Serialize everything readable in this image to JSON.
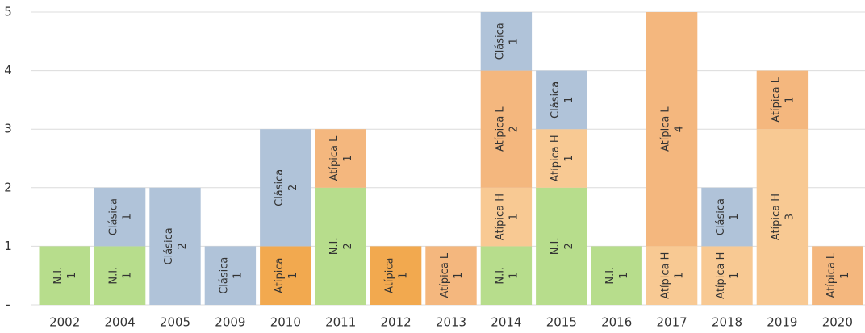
{
  "chart_data": {
    "type": "stacked_bar",
    "categories": [
      "2002",
      "2004",
      "2005",
      "2009",
      "2010",
      "2011",
      "2012",
      "2013",
      "2014",
      "2015",
      "2016",
      "2017",
      "2018",
      "2019",
      "2020"
    ],
    "series": [
      {
        "name": "N.I.",
        "color": "#b7dd8c",
        "values": [
          1,
          1,
          null,
          null,
          null,
          2,
          null,
          null,
          1,
          2,
          1,
          null,
          null,
          null,
          null
        ]
      },
      {
        "name": "Atípica",
        "color": "#f2a94f",
        "values": [
          null,
          null,
          null,
          null,
          1,
          null,
          1,
          null,
          null,
          null,
          null,
          null,
          null,
          null,
          null
        ]
      },
      {
        "name": "Atípica H",
        "color": "#f8c993",
        "values": [
          null,
          null,
          null,
          null,
          null,
          null,
          null,
          null,
          1,
          1,
          null,
          1,
          1,
          3,
          null
        ]
      },
      {
        "name": "Atípica L",
        "color": "#f4b77e",
        "values": [
          null,
          null,
          null,
          null,
          null,
          1,
          null,
          1,
          2,
          null,
          null,
          4,
          null,
          1,
          1
        ]
      },
      {
        "name": "Clásica",
        "color": "#b0c3d9",
        "values": [
          null,
          1,
          2,
          1,
          2,
          null,
          null,
          null,
          1,
          1,
          null,
          null,
          1,
          null,
          null
        ]
      }
    ],
    "ylim": [
      0,
      5
    ],
    "yticks": [
      {
        "value": 0,
        "label": "-"
      },
      1,
      2,
      3,
      4,
      5
    ],
    "grid": true
  }
}
